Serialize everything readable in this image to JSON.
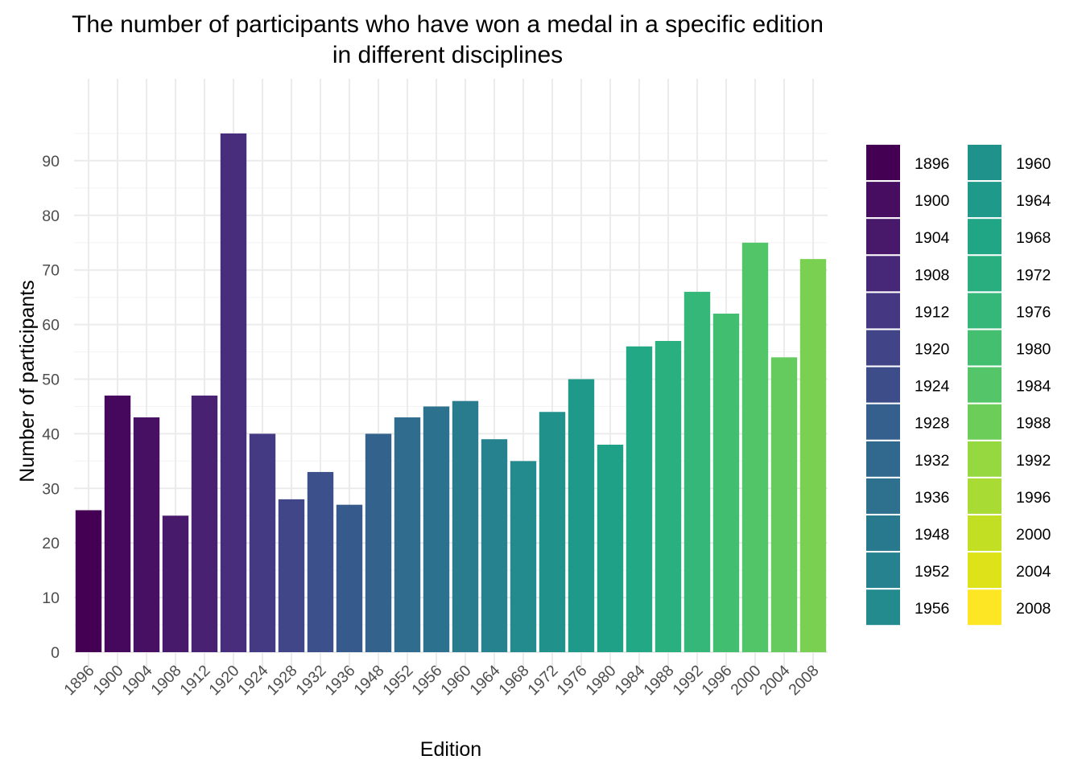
{
  "chart_data": {
    "type": "bar",
    "title_lines": [
      "The number of participants who have won a medal in a specific edition",
      "in different disciplines"
    ],
    "xlabel": "Edition",
    "ylabel": "Number of participants",
    "ylim": [
      0,
      95
    ],
    "yticks": [
      0,
      10,
      20,
      30,
      40,
      50,
      60,
      70,
      80,
      90
    ],
    "grid": true,
    "legend_position": "right",
    "legend_columns": 2,
    "categories": [
      "1896",
      "1900",
      "1904",
      "1908",
      "1912",
      "1920",
      "1924",
      "1928",
      "1932",
      "1936",
      "1948",
      "1952",
      "1956",
      "1960",
      "1964",
      "1968",
      "1972",
      "1976",
      "1980",
      "1984",
      "1988",
      "1992",
      "1996",
      "2000",
      "2004",
      "2008"
    ],
    "values": [
      26,
      47,
      43,
      25,
      47,
      95,
      40,
      28,
      33,
      27,
      40,
      43,
      45,
      46,
      39,
      35,
      44,
      50,
      38,
      56,
      57,
      66,
      62,
      75,
      54,
      72
    ],
    "colors": [
      "#440154",
      "#46085C",
      "#471063",
      "#481A6C",
      "#482173",
      "#472D7B",
      "#443983",
      "#404688",
      "#3C508B",
      "#375A8C",
      "#33638D",
      "#2F6C8E",
      "#2C728E",
      "#297B8E",
      "#26828E",
      "#238A8D",
      "#21918C",
      "#1F998A",
      "#1FA187",
      "#22A884",
      "#2AB07F",
      "#35B779",
      "#42BE71",
      "#52C569",
      "#65CB5E",
      "#7AD151",
      "#8FD744",
      "#A5DB36",
      "#BADE28",
      "#D2E21B",
      "#E7E419",
      "#FDE725"
    ],
    "legend": [
      {
        "label": "1896",
        "color": "#440154"
      },
      {
        "label": "1900",
        "color": "#470D60"
      },
      {
        "label": "1904",
        "color": "#48186A"
      },
      {
        "label": "1908",
        "color": "#472878"
      },
      {
        "label": "1912",
        "color": "#453781"
      },
      {
        "label": "1920",
        "color": "#414487"
      },
      {
        "label": "1924",
        "color": "#3D4D8A"
      },
      {
        "label": "1928",
        "color": "#355F8D"
      },
      {
        "label": "1932",
        "color": "#31688E"
      },
      {
        "label": "1936",
        "color": "#2D718E"
      },
      {
        "label": "1948",
        "color": "#29798E"
      },
      {
        "label": "1952",
        "color": "#26828E"
      },
      {
        "label": "1956",
        "color": "#238A8D"
      },
      {
        "label": "1960",
        "color": "#20928C"
      },
      {
        "label": "1964",
        "color": "#1F9A8A"
      },
      {
        "label": "1968",
        "color": "#21A685"
      },
      {
        "label": "1972",
        "color": "#29AF7F"
      },
      {
        "label": "1976",
        "color": "#35B779"
      },
      {
        "label": "1980",
        "color": "#44BF70"
      },
      {
        "label": "1984",
        "color": "#54C568"
      },
      {
        "label": "1988",
        "color": "#6DCD59"
      },
      {
        "label": "1992",
        "color": "#95D840"
      },
      {
        "label": "1996",
        "color": "#A8DB34"
      },
      {
        "label": "2000",
        "color": "#C2DF23"
      },
      {
        "label": "2004",
        "color": "#DDE318"
      },
      {
        "label": "2008",
        "color": "#FDE725"
      }
    ]
  }
}
